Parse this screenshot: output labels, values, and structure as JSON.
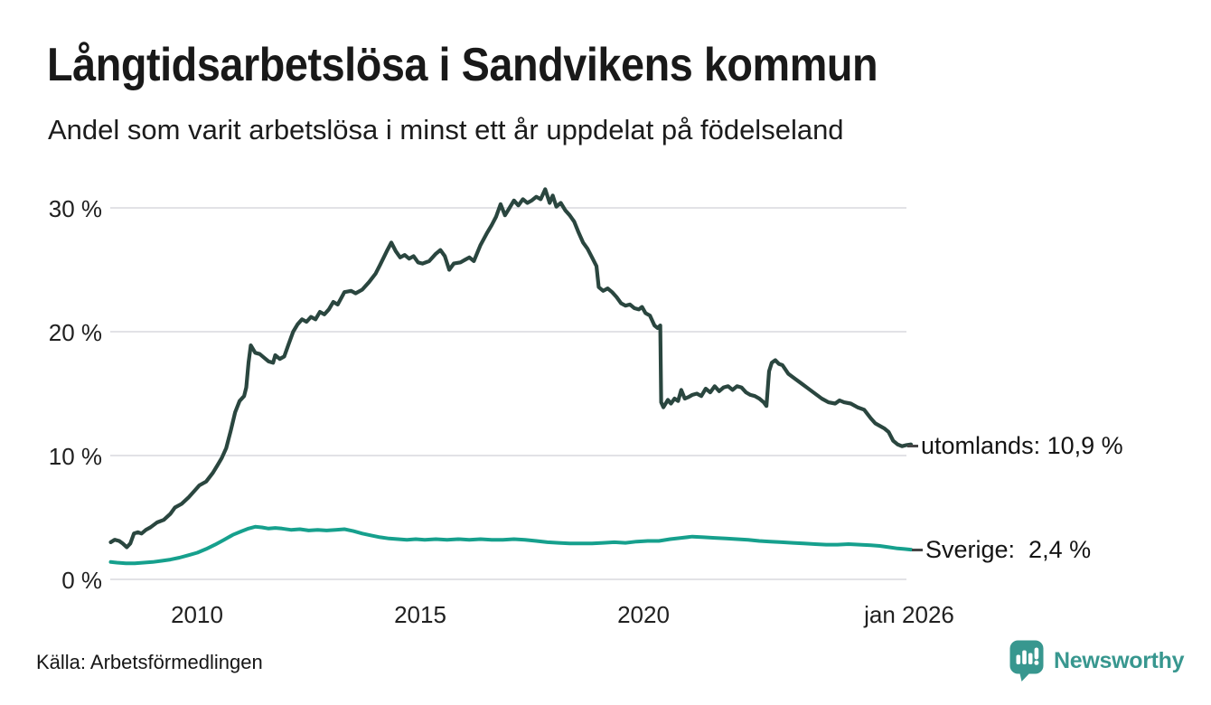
{
  "header": {
    "title": "Långtidsarbetslösa i Sandvikens kommun",
    "subtitle": "Andel som varit arbetslösa i minst ett år uppdelat på födelseland"
  },
  "chart_data": {
    "type": "line",
    "title": "Långtidsarbetslösa i Sandvikens kommun",
    "subtitle": "Andel som varit arbetslösa i minst ett år uppdelat på födelseland",
    "xlabel": "",
    "ylabel": "",
    "x_unit": "decimal_year",
    "xlim": [
      2008.05,
      2026.0
    ],
    "ylim": [
      0,
      30
    ],
    "grid": "horizontal",
    "legend_position": "right-end-labels",
    "ytick_labels": [
      "30 %",
      "20 %",
      "10 %",
      "0 %"
    ],
    "xticks": [
      {
        "t": 2010,
        "label": "2010"
      },
      {
        "t": 2015,
        "label": "2015"
      },
      {
        "t": 2020,
        "label": "2020"
      },
      {
        "t": 2026,
        "label": "jan 2026"
      }
    ],
    "series": [
      {
        "name": "utomlands",
        "color": "#2a463f",
        "end_label": "utomlands: 10,9 %",
        "last_value": "10,9 %",
        "points": [
          [
            2008.06,
            3.0
          ],
          [
            2008.15,
            3.2
          ],
          [
            2008.25,
            3.1
          ],
          [
            2008.33,
            2.9
          ],
          [
            2008.42,
            2.6
          ],
          [
            2008.5,
            2.9
          ],
          [
            2008.58,
            3.7
          ],
          [
            2008.67,
            3.8
          ],
          [
            2008.75,
            3.7
          ],
          [
            2008.85,
            4.0
          ],
          [
            2008.95,
            4.2
          ],
          [
            2009.1,
            4.6
          ],
          [
            2009.25,
            4.8
          ],
          [
            2009.4,
            5.3
          ],
          [
            2009.5,
            5.8
          ],
          [
            2009.65,
            6.1
          ],
          [
            2009.8,
            6.6
          ],
          [
            2009.95,
            7.2
          ],
          [
            2010.05,
            7.6
          ],
          [
            2010.2,
            7.9
          ],
          [
            2010.35,
            8.6
          ],
          [
            2010.45,
            9.2
          ],
          [
            2010.55,
            9.8
          ],
          [
            2010.65,
            10.6
          ],
          [
            2010.75,
            12.0
          ],
          [
            2010.85,
            13.5
          ],
          [
            2010.95,
            14.4
          ],
          [
            2011.05,
            14.8
          ],
          [
            2011.1,
            15.5
          ],
          [
            2011.15,
            17.5
          ],
          [
            2011.2,
            18.9
          ],
          [
            2011.3,
            18.3
          ],
          [
            2011.4,
            18.2
          ],
          [
            2011.5,
            17.9
          ],
          [
            2011.6,
            17.6
          ],
          [
            2011.7,
            17.5
          ],
          [
            2011.75,
            18.1
          ],
          [
            2011.85,
            17.8
          ],
          [
            2011.95,
            18.0
          ],
          [
            2012.05,
            19.0
          ],
          [
            2012.15,
            20.0
          ],
          [
            2012.25,
            20.6
          ],
          [
            2012.35,
            21.0
          ],
          [
            2012.45,
            20.8
          ],
          [
            2012.55,
            21.2
          ],
          [
            2012.65,
            21.0
          ],
          [
            2012.75,
            21.6
          ],
          [
            2012.85,
            21.4
          ],
          [
            2012.95,
            21.8
          ],
          [
            2013.05,
            22.4
          ],
          [
            2013.15,
            22.2
          ],
          [
            2013.3,
            23.2
          ],
          [
            2013.45,
            23.3
          ],
          [
            2013.55,
            23.1
          ],
          [
            2013.7,
            23.4
          ],
          [
            2013.85,
            24.0
          ],
          [
            2014.0,
            24.7
          ],
          [
            2014.1,
            25.4
          ],
          [
            2014.25,
            26.5
          ],
          [
            2014.35,
            27.2
          ],
          [
            2014.45,
            26.5
          ],
          [
            2014.55,
            26.0
          ],
          [
            2014.65,
            26.2
          ],
          [
            2014.75,
            25.9
          ],
          [
            2014.85,
            26.1
          ],
          [
            2014.95,
            25.6
          ],
          [
            2015.05,
            25.5
          ],
          [
            2015.2,
            25.7
          ],
          [
            2015.35,
            26.3
          ],
          [
            2015.45,
            26.6
          ],
          [
            2015.55,
            26.1
          ],
          [
            2015.65,
            25.0
          ],
          [
            2015.75,
            25.5
          ],
          [
            2015.9,
            25.6
          ],
          [
            2016.0,
            25.8
          ],
          [
            2016.1,
            26.0
          ],
          [
            2016.2,
            25.7
          ],
          [
            2016.35,
            27.0
          ],
          [
            2016.5,
            28.0
          ],
          [
            2016.6,
            28.6
          ],
          [
            2016.7,
            29.3
          ],
          [
            2016.8,
            30.3
          ],
          [
            2016.9,
            29.4
          ],
          [
            2017.0,
            30.0
          ],
          [
            2017.1,
            30.6
          ],
          [
            2017.2,
            30.2
          ],
          [
            2017.3,
            30.7
          ],
          [
            2017.4,
            30.4
          ],
          [
            2017.5,
            30.6
          ],
          [
            2017.6,
            30.9
          ],
          [
            2017.7,
            30.7
          ],
          [
            2017.8,
            31.5
          ],
          [
            2017.9,
            30.4
          ],
          [
            2017.97,
            31.0
          ],
          [
            2018.05,
            30.1
          ],
          [
            2018.15,
            30.4
          ],
          [
            2018.25,
            29.8
          ],
          [
            2018.35,
            29.4
          ],
          [
            2018.45,
            28.9
          ],
          [
            2018.55,
            28.0
          ],
          [
            2018.65,
            27.2
          ],
          [
            2018.75,
            26.7
          ],
          [
            2018.85,
            26.0
          ],
          [
            2018.95,
            25.3
          ],
          [
            2019.0,
            23.6
          ],
          [
            2019.1,
            23.3
          ],
          [
            2019.2,
            23.5
          ],
          [
            2019.3,
            23.2
          ],
          [
            2019.4,
            22.8
          ],
          [
            2019.5,
            22.3
          ],
          [
            2019.6,
            22.1
          ],
          [
            2019.7,
            22.2
          ],
          [
            2019.8,
            21.9
          ],
          [
            2019.9,
            21.8
          ],
          [
            2019.97,
            22.0
          ],
          [
            2020.05,
            21.5
          ],
          [
            2020.15,
            21.3
          ],
          [
            2020.25,
            20.5
          ],
          [
            2020.32,
            20.3
          ],
          [
            2020.38,
            20.5
          ],
          [
            2020.4,
            14.3
          ],
          [
            2020.45,
            13.9
          ],
          [
            2020.55,
            14.5
          ],
          [
            2020.62,
            14.2
          ],
          [
            2020.7,
            14.6
          ],
          [
            2020.78,
            14.4
          ],
          [
            2020.85,
            15.3
          ],
          [
            2020.93,
            14.6
          ],
          [
            2021.0,
            14.7
          ],
          [
            2021.1,
            14.9
          ],
          [
            2021.2,
            15.0
          ],
          [
            2021.3,
            14.8
          ],
          [
            2021.4,
            15.4
          ],
          [
            2021.5,
            15.1
          ],
          [
            2021.6,
            15.6
          ],
          [
            2021.7,
            15.2
          ],
          [
            2021.8,
            15.5
          ],
          [
            2021.9,
            15.6
          ],
          [
            2022.0,
            15.3
          ],
          [
            2022.1,
            15.6
          ],
          [
            2022.2,
            15.5
          ],
          [
            2022.3,
            15.1
          ],
          [
            2022.4,
            14.9
          ],
          [
            2022.5,
            14.8
          ],
          [
            2022.6,
            14.6
          ],
          [
            2022.7,
            14.3
          ],
          [
            2022.76,
            14.0
          ],
          [
            2022.82,
            16.8
          ],
          [
            2022.88,
            17.5
          ],
          [
            2022.96,
            17.7
          ],
          [
            2023.04,
            17.4
          ],
          [
            2023.12,
            17.3
          ],
          [
            2023.25,
            16.6
          ],
          [
            2023.4,
            16.2
          ],
          [
            2023.55,
            15.8
          ],
          [
            2023.7,
            15.4
          ],
          [
            2023.85,
            15.0
          ],
          [
            2024.0,
            14.6
          ],
          [
            2024.15,
            14.3
          ],
          [
            2024.3,
            14.2
          ],
          [
            2024.4,
            14.45
          ],
          [
            2024.5,
            14.3
          ],
          [
            2024.65,
            14.2
          ],
          [
            2024.8,
            13.9
          ],
          [
            2024.95,
            13.7
          ],
          [
            2025.1,
            13.0
          ],
          [
            2025.2,
            12.6
          ],
          [
            2025.3,
            12.4
          ],
          [
            2025.4,
            12.2
          ],
          [
            2025.5,
            11.9
          ],
          [
            2025.6,
            11.2
          ],
          [
            2025.7,
            10.9
          ],
          [
            2025.8,
            10.75
          ],
          [
            2025.9,
            10.85
          ],
          [
            2026.0,
            10.9
          ]
        ]
      },
      {
        "name": "Sverige",
        "color": "#16a08d",
        "end_label": "Sverige:  2,4 %",
        "last_value": "2,4 %",
        "points": [
          [
            2008.06,
            1.4
          ],
          [
            2008.2,
            1.35
          ],
          [
            2008.4,
            1.3
          ],
          [
            2008.6,
            1.3
          ],
          [
            2008.8,
            1.35
          ],
          [
            2009.0,
            1.4
          ],
          [
            2009.2,
            1.5
          ],
          [
            2009.4,
            1.6
          ],
          [
            2009.6,
            1.75
          ],
          [
            2009.8,
            1.95
          ],
          [
            2010.0,
            2.15
          ],
          [
            2010.2,
            2.45
          ],
          [
            2010.4,
            2.8
          ],
          [
            2010.6,
            3.2
          ],
          [
            2010.8,
            3.6
          ],
          [
            2011.0,
            3.9
          ],
          [
            2011.15,
            4.1
          ],
          [
            2011.3,
            4.25
          ],
          [
            2011.45,
            4.2
          ],
          [
            2011.6,
            4.1
          ],
          [
            2011.75,
            4.15
          ],
          [
            2011.9,
            4.1
          ],
          [
            2012.1,
            4.0
          ],
          [
            2012.3,
            4.05
          ],
          [
            2012.5,
            3.95
          ],
          [
            2012.7,
            4.0
          ],
          [
            2012.9,
            3.95
          ],
          [
            2013.1,
            4.0
          ],
          [
            2013.3,
            4.05
          ],
          [
            2013.5,
            3.9
          ],
          [
            2013.7,
            3.7
          ],
          [
            2013.9,
            3.55
          ],
          [
            2014.1,
            3.4
          ],
          [
            2014.3,
            3.3
          ],
          [
            2014.5,
            3.25
          ],
          [
            2014.7,
            3.2
          ],
          [
            2014.9,
            3.25
          ],
          [
            2015.1,
            3.2
          ],
          [
            2015.35,
            3.25
          ],
          [
            2015.6,
            3.2
          ],
          [
            2015.85,
            3.25
          ],
          [
            2016.1,
            3.2
          ],
          [
            2016.35,
            3.25
          ],
          [
            2016.6,
            3.2
          ],
          [
            2016.85,
            3.2
          ],
          [
            2017.1,
            3.25
          ],
          [
            2017.35,
            3.2
          ],
          [
            2017.6,
            3.1
          ],
          [
            2017.85,
            3.0
          ],
          [
            2018.1,
            2.95
          ],
          [
            2018.35,
            2.9
          ],
          [
            2018.6,
            2.9
          ],
          [
            2018.85,
            2.9
          ],
          [
            2019.1,
            2.95
          ],
          [
            2019.35,
            3.0
          ],
          [
            2019.6,
            2.95
          ],
          [
            2019.85,
            3.05
          ],
          [
            2020.1,
            3.1
          ],
          [
            2020.35,
            3.1
          ],
          [
            2020.6,
            3.25
          ],
          [
            2020.85,
            3.35
          ],
          [
            2021.1,
            3.45
          ],
          [
            2021.35,
            3.4
          ],
          [
            2021.6,
            3.35
          ],
          [
            2021.85,
            3.3
          ],
          [
            2022.1,
            3.25
          ],
          [
            2022.35,
            3.2
          ],
          [
            2022.6,
            3.1
          ],
          [
            2022.85,
            3.05
          ],
          [
            2023.1,
            3.0
          ],
          [
            2023.35,
            2.95
          ],
          [
            2023.6,
            2.9
          ],
          [
            2023.85,
            2.85
          ],
          [
            2024.1,
            2.8
          ],
          [
            2024.35,
            2.8
          ],
          [
            2024.6,
            2.85
          ],
          [
            2024.85,
            2.8
          ],
          [
            2025.1,
            2.75
          ],
          [
            2025.3,
            2.7
          ],
          [
            2025.5,
            2.6
          ],
          [
            2025.7,
            2.5
          ],
          [
            2025.85,
            2.45
          ],
          [
            2026.0,
            2.4
          ]
        ]
      }
    ]
  },
  "footer": {
    "source": "Källa: Arbetsförmedlingen",
    "brand": "Newsworthy",
    "brand_color": "#38978f",
    "logo_icon": "bar-chart-speech-bubble-icon"
  }
}
